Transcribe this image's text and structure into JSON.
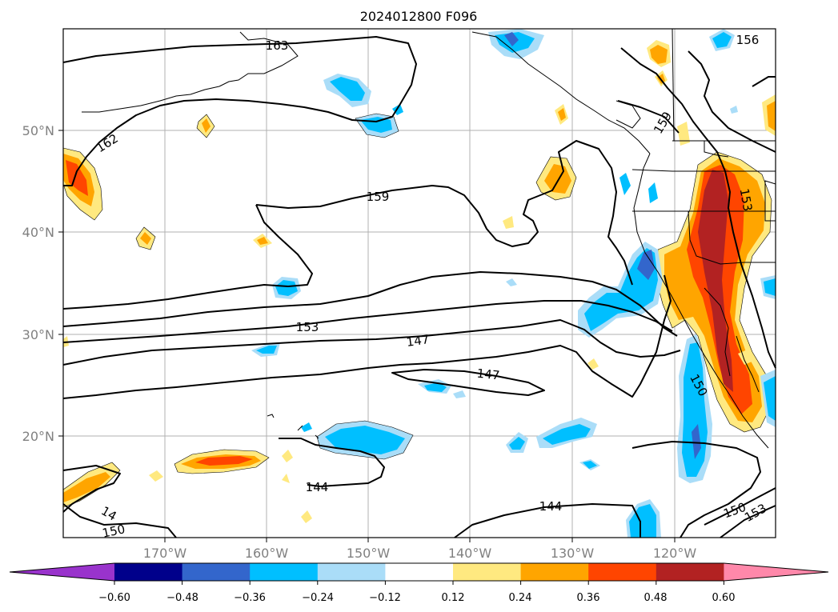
{
  "map": {
    "title": "2024012800 F096",
    "lat_labels": [
      "50°N",
      "40°N",
      "30°N",
      "20°N"
    ],
    "lon_labels": [
      "170°W",
      "160°W",
      "150°W",
      "140°W",
      "130°W",
      "120°W"
    ],
    "contour_labels": [
      "163",
      "162",
      "159",
      "159",
      "156",
      "153",
      "153",
      "147",
      "147",
      "150",
      "144",
      "144",
      "150",
      "153",
      "14",
      "150"
    ]
  },
  "colorbar": {
    "ticks": [
      "−0.60",
      "−0.48",
      "−0.36",
      "−0.24",
      "−0.12",
      "0.12",
      "0.24",
      "0.36",
      "0.48",
      "0.60"
    ],
    "colors": [
      "#9933cc",
      "#00008b",
      "#3366cc",
      "#00bfff",
      "#aaddf8",
      "#ffffff",
      "#ffe980",
      "#ffa500",
      "#ff4500",
      "#b22222",
      "#ff88aa"
    ]
  }
}
